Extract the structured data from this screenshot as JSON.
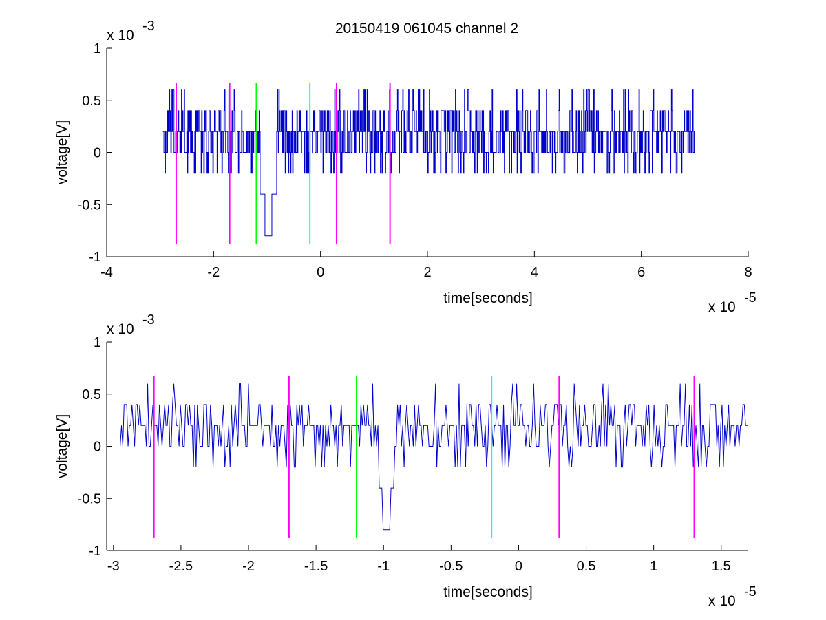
{
  "title": "20150419 061045 channel 2",
  "colors": {
    "background": "#ffffff",
    "signal": "#0000cc",
    "magenta": "#ff00ff",
    "green": "#00ff00",
    "cyan": "#00ffff",
    "axes": "#000000"
  },
  "chart_data": [
    {
      "type": "line",
      "title": "20150419 061045 channel 2",
      "xlabel": "time[seconds]",
      "ylabel": "voltage[V]",
      "x_multiplier": "x 10",
      "x_multiplier_exp": "-5",
      "y_multiplier": "x 10",
      "y_multiplier_exp": "-3",
      "xlim": [
        -4,
        8
      ],
      "ylim": [
        -1,
        1
      ],
      "xticks": [
        -4,
        -2,
        0,
        2,
        4,
        6,
        8
      ],
      "xtick_labels": [
        "-4",
        "-2",
        "0",
        "2",
        "4",
        "6",
        "8"
      ],
      "yticks": [
        -1,
        -0.5,
        0,
        0.5,
        1
      ],
      "ytick_labels": [
        "-1",
        "-0.5",
        "0",
        "0.5",
        "1"
      ],
      "grid": false,
      "signal": {
        "x_start": -2.95,
        "x_end": 7.0,
        "levels": [
          -0.8,
          -0.4,
          -0.2,
          0,
          0.2,
          0.4,
          0.6
        ],
        "dip_at": -0.98,
        "dip_value": -0.8
      },
      "markers": [
        {
          "x": -2.7,
          "color": "magenta",
          "y_range": [
            -0.88,
            0.67
          ]
        },
        {
          "x": -1.7,
          "color": "magenta",
          "y_range": [
            -0.88,
            0.67
          ]
        },
        {
          "x": -1.2,
          "color": "green",
          "y_range": [
            -0.88,
            0.67
          ]
        },
        {
          "x": -0.2,
          "color": "cyan",
          "y_range": [
            -0.88,
            0.67
          ]
        },
        {
          "x": 0.3,
          "color": "magenta",
          "y_range": [
            -0.88,
            0.67
          ]
        },
        {
          "x": 1.3,
          "color": "magenta",
          "y_range": [
            -0.88,
            0.67
          ]
        }
      ]
    },
    {
      "type": "line",
      "title": "",
      "xlabel": "time[seconds]",
      "ylabel": "voltage[V]",
      "x_multiplier": "x 10",
      "x_multiplier_exp": "-5",
      "y_multiplier": "x 10",
      "y_multiplier_exp": "-3",
      "xlim": [
        -3.05,
        1.7
      ],
      "ylim": [
        -1,
        1
      ],
      "xticks": [
        -3,
        -2.5,
        -2,
        -1.5,
        -1,
        -0.5,
        0,
        0.5,
        1,
        1.5
      ],
      "xtick_labels": [
        "-3",
        "-2.5",
        "-2",
        "-1.5",
        "-1",
        "-0.5",
        "0",
        "0.5",
        "1",
        "1.5"
      ],
      "yticks": [
        -1,
        -0.5,
        0,
        0.5,
        1
      ],
      "ytick_labels": [
        "-1",
        "-0.5",
        "0",
        "0.5",
        "1"
      ],
      "grid": false,
      "signal": {
        "x_start": -2.95,
        "x_end": 1.7,
        "levels": [
          -0.8,
          -0.4,
          -0.2,
          0,
          0.2,
          0.4,
          0.6
        ],
        "dip_at": -0.98,
        "dip_value": -0.8
      },
      "markers": [
        {
          "x": -2.7,
          "color": "magenta",
          "y_range": [
            -0.88,
            0.67
          ]
        },
        {
          "x": -1.7,
          "color": "magenta",
          "y_range": [
            -0.88,
            0.67
          ]
        },
        {
          "x": -1.2,
          "color": "green",
          "y_range": [
            -0.88,
            0.67
          ]
        },
        {
          "x": -0.2,
          "color": "cyan",
          "y_range": [
            -0.88,
            0.67
          ]
        },
        {
          "x": 0.3,
          "color": "magenta",
          "y_range": [
            -0.88,
            0.67
          ]
        },
        {
          "x": 1.3,
          "color": "magenta",
          "y_range": [
            -0.88,
            0.67
          ]
        }
      ]
    }
  ]
}
